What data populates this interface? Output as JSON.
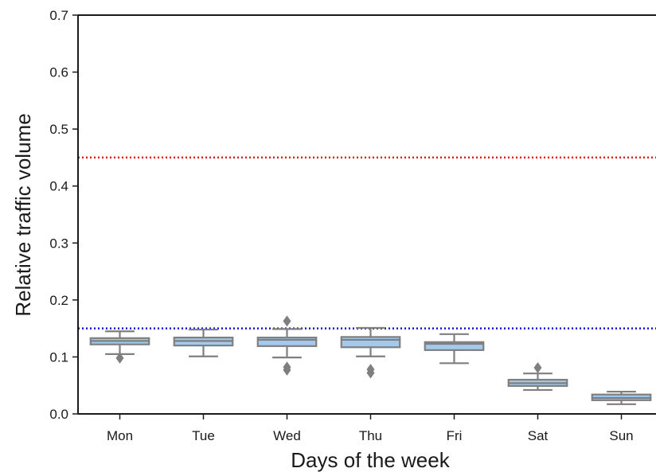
{
  "chart_data": {
    "type": "box",
    "xlabel": "Days of the week",
    "ylabel": "Relative traffic volume",
    "categories": [
      "Mon",
      "Tue",
      "Wed",
      "Thu",
      "Fri",
      "Sat",
      "Sun"
    ],
    "boxes": [
      {
        "whislo": 0.105,
        "q1": 0.122,
        "med": 0.128,
        "q3": 0.133,
        "whishi": 0.145,
        "fliers": [
          0.098
        ]
      },
      {
        "whislo": 0.101,
        "q1": 0.12,
        "med": 0.128,
        "q3": 0.134,
        "whishi": 0.148,
        "fliers": []
      },
      {
        "whislo": 0.099,
        "q1": 0.119,
        "med": 0.13,
        "q3": 0.134,
        "whishi": 0.149,
        "fliers": [
          0.163,
          0.082,
          0.077
        ]
      },
      {
        "whislo": 0.101,
        "q1": 0.117,
        "med": 0.13,
        "q3": 0.135,
        "whishi": 0.151,
        "fliers": [
          0.078,
          0.072
        ]
      },
      {
        "whislo": 0.089,
        "q1": 0.112,
        "med": 0.123,
        "q3": 0.126,
        "whishi": 0.14,
        "fliers": []
      },
      {
        "whislo": 0.042,
        "q1": 0.049,
        "med": 0.054,
        "q3": 0.06,
        "whishi": 0.071,
        "fliers": [
          0.081
        ]
      },
      {
        "whislo": 0.017,
        "q1": 0.024,
        "med": 0.028,
        "q3": 0.034,
        "whishi": 0.039,
        "fliers": []
      }
    ],
    "box_color": "#a3c9ec",
    "edge_color": "#7f7f7f",
    "hlines": [
      {
        "value": 0.45,
        "color": "#ee1111"
      },
      {
        "value": 0.15,
        "color": "#1111dd"
      }
    ],
    "ylim": [
      0,
      0.7
    ],
    "yticks": [
      {
        "value": 0,
        "label": "0.0"
      },
      0.1,
      0.2,
      0.3,
      0.4,
      0.5,
      0.6,
      0.7
    ]
  }
}
